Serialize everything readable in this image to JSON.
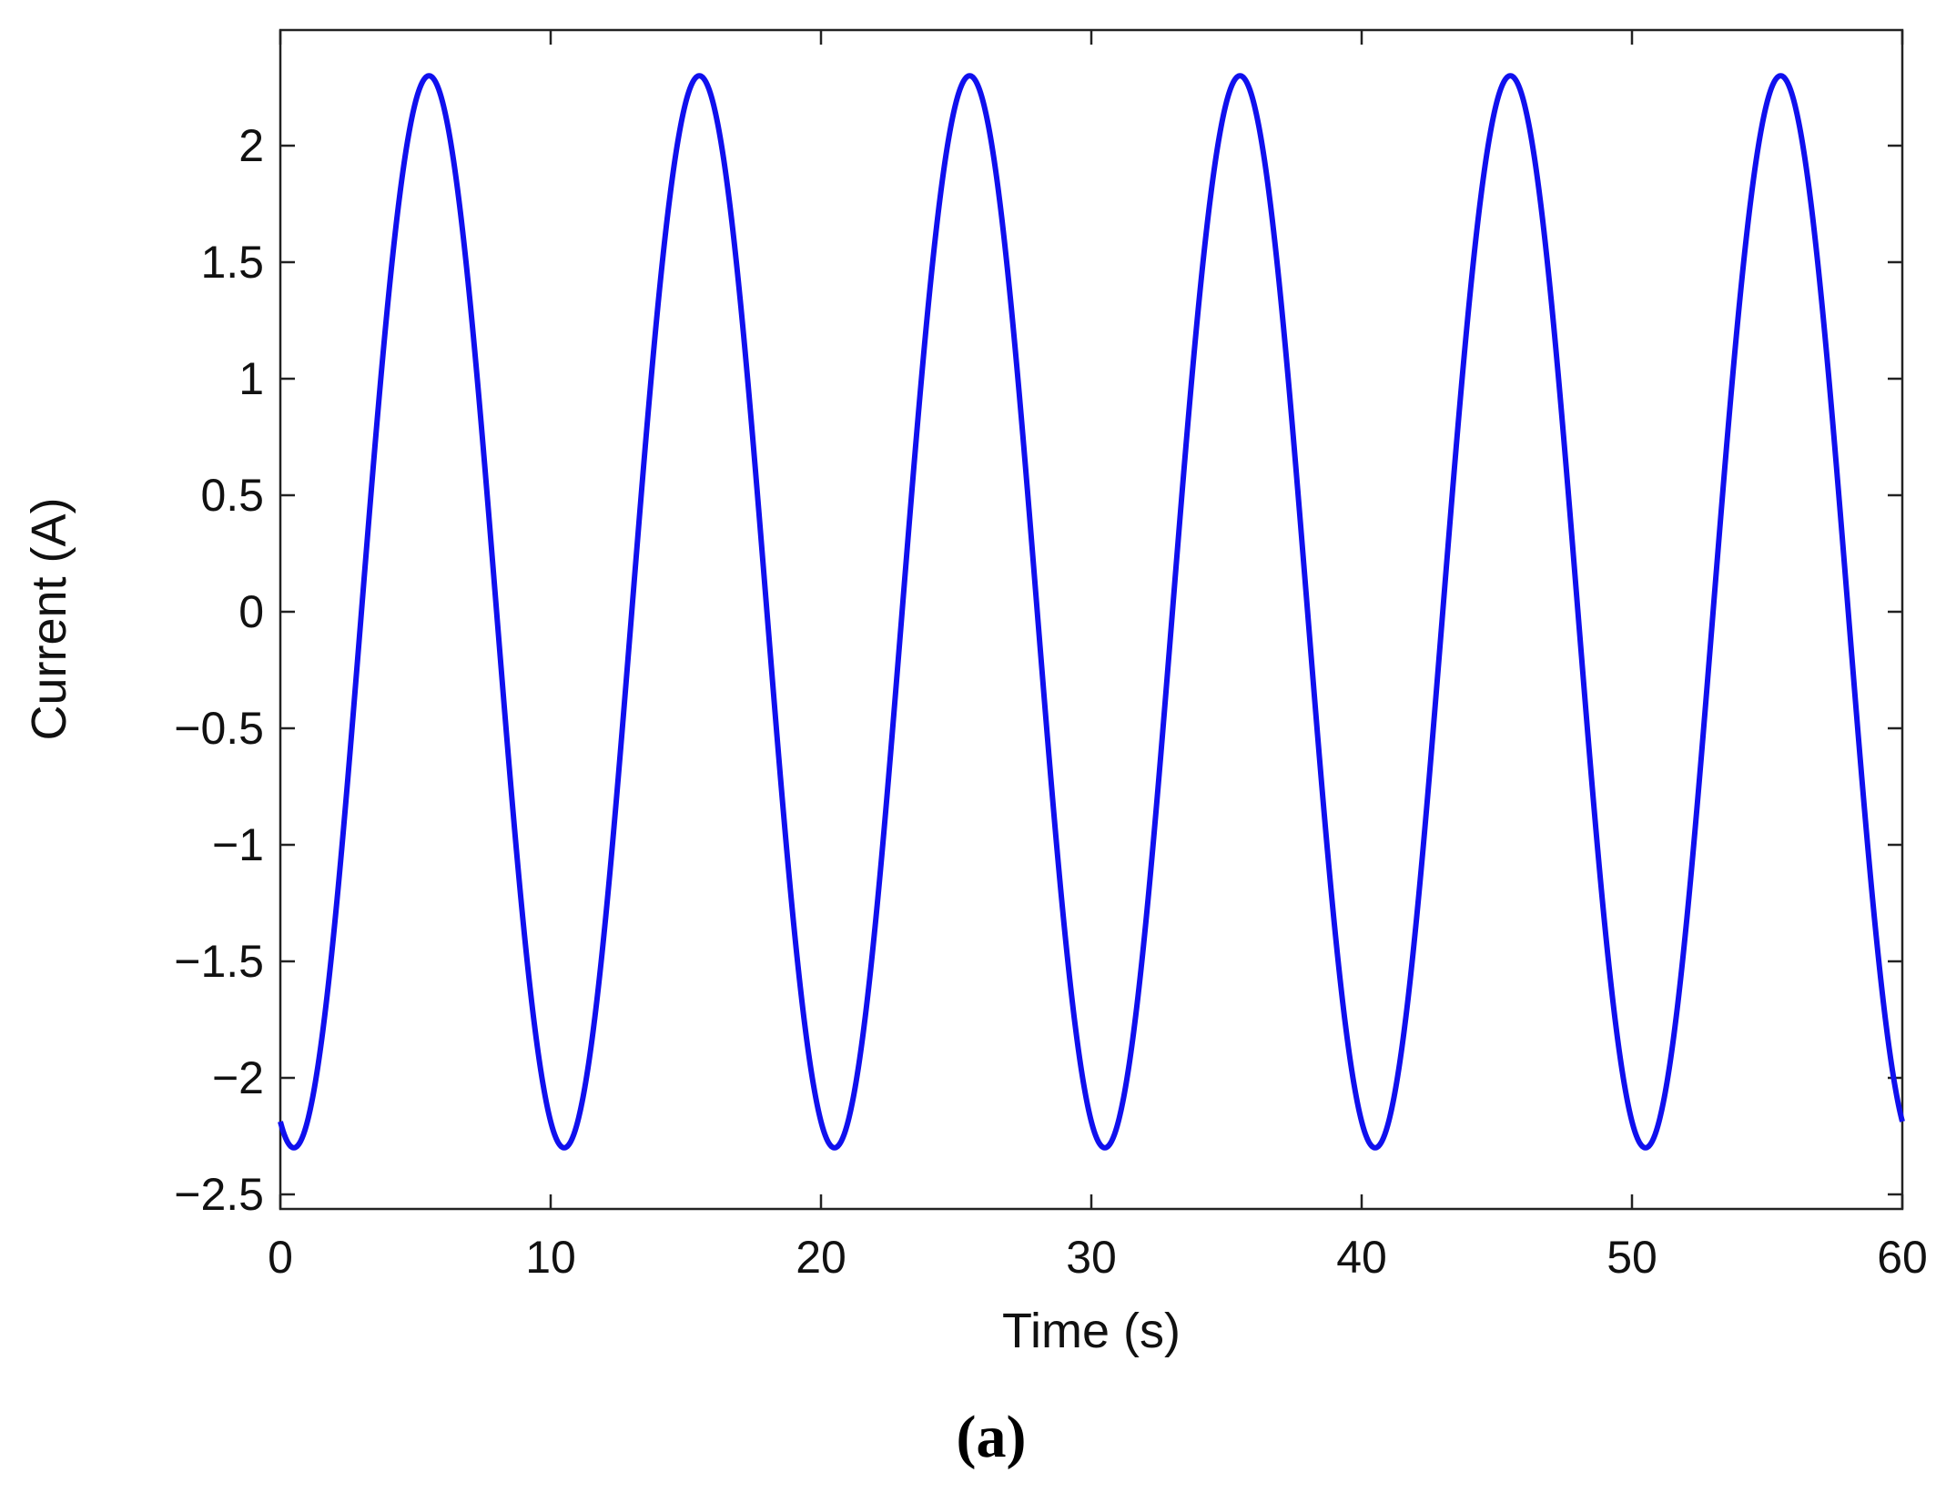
{
  "chart_data": {
    "type": "line",
    "title": "",
    "xlabel": "Time (s)",
    "ylabel": "Current (A)",
    "panel_label": "(a)",
    "xlim": [
      0,
      60
    ],
    "ylim": [
      -2.5,
      2.3
    ],
    "xticks": [
      0,
      10,
      20,
      30,
      40,
      50,
      60
    ],
    "xtick_labels": [
      "0",
      "10",
      "20",
      "30",
      "40",
      "50",
      "60"
    ],
    "yticks": [
      2,
      1.5,
      1,
      0.5,
      0,
      -0.5,
      -1,
      -1.5,
      -2,
      -2.5
    ],
    "ytick_labels": [
      "2",
      "1.5",
      "1",
      "0.5",
      "0",
      "−0.5",
      "−1",
      "−1.5",
      "−2",
      "−2.5"
    ],
    "grid": false,
    "line_color": "#1010ee",
    "series": [
      {
        "amplitude": 2.3,
        "period": 10,
        "peaks_at": [
          5.5,
          15.5,
          25.5,
          35.5,
          45.5,
          55.5
        ],
        "troughs_at": [
          0.5,
          10.5,
          20.5,
          30.5,
          40.5,
          50.5
        ],
        "x": [
          0,
          0.5,
          3,
          5.5,
          8,
          10.5,
          13,
          15.5,
          18,
          20.5,
          23,
          25.5,
          28,
          30.5,
          33,
          35.5,
          38,
          40.5,
          43,
          45.5,
          48,
          50.5,
          53,
          55.5,
          58,
          60
        ],
        "values": [
          -2.2,
          -2.3,
          0,
          2.3,
          0,
          -2.3,
          0,
          2.3,
          0,
          -2.3,
          0,
          2.3,
          0,
          -2.3,
          0,
          2.3,
          0,
          -2.3,
          0,
          2.3,
          0,
          -2.3,
          0,
          2.3,
          0,
          -2.2
        ]
      }
    ]
  }
}
